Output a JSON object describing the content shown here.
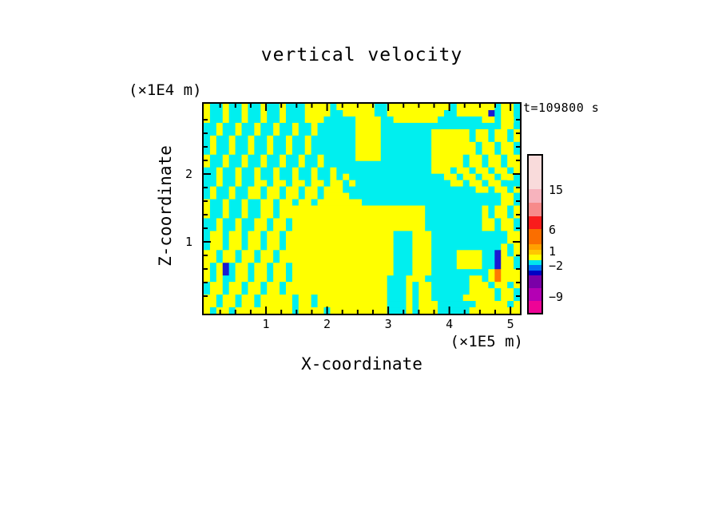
{
  "chart_data": {
    "type": "filled-contour",
    "title": "vertical velocity",
    "time_label": "t=109800 s",
    "x_axis": {
      "label": "X-coordinate",
      "unit": "(×1E5 m)",
      "range": [
        -0.02,
        5.155
      ],
      "major_ticks": [
        1,
        2,
        3,
        4,
        5
      ],
      "tick_labels": [
        "1",
        "2",
        "3",
        "4",
        "5"
      ],
      "minor_step": 0.25
    },
    "z_axis": {
      "label": "Z-coordinate",
      "unit": "(×1E4 m)",
      "range": [
        -0.059,
        3.035
      ],
      "major_ticks": [
        1,
        2
      ],
      "tick_labels": [
        "1",
        "2"
      ],
      "minor_step": 0.2
    },
    "colorbar": {
      "segments": [
        {
          "color": "#F9DBDB",
          "h": 42
        },
        {
          "color": "#F7B3BD",
          "h": 17
        },
        {
          "color": "#F78A8A",
          "h": 17
        },
        {
          "color": "#F91C1C",
          "h": 16
        },
        {
          "color": "#FA6E00",
          "h": 19
        },
        {
          "color": "#FFA000",
          "h": 6.5
        },
        {
          "color": "#FFC800",
          "h": 6.5
        },
        {
          "color": "#FFFF00",
          "h": 6.5
        },
        {
          "color": "#00E6EE",
          "h": 6.5
        },
        {
          "color": "#0072F5",
          "h": 6.5
        },
        {
          "color": "#0000C3",
          "h": 6.5
        },
        {
          "color": "#7A00A8",
          "h": 16
        },
        {
          "color": "#B400B4",
          "h": 16
        },
        {
          "color": "#EE0496",
          "h": 15
        }
      ],
      "labels": [
        {
          "text": "15",
          "offset": 43
        },
        {
          "text": "6",
          "offset": 93
        },
        {
          "text": "1",
          "offset": 120
        },
        {
          "text": "−2",
          "offset": 138
        },
        {
          "text": "−9",
          "offset": 177
        }
      ]
    },
    "field": {
      "cols": 50,
      "palette": {
        ".": {
          "color": "#00EFEF",
          "approx_value": "weak negative (−2 to 0)"
        },
        "Y": {
          "color": "#FFFF00",
          "approx_value": "weak positive (0 to 1)"
        },
        "B": {
          "color": "#1A1AD2",
          "approx_value": "strong negative (below −2)"
        },
        "O": {
          "color": "#FF7800",
          "approx_value": "strong positive (above +2)"
        }
      },
      "rows": [
        "Y..Y..Y..Y..Y...YYYY.YYYYYY..YYYYYYYYYY.YYYYYY.YY.",
        "Y..Y..Y..Y..Y...YYYY..YYYYY..YYYYYYYYY..YYYYYB.YY.",
        "Y..Y..Y..Y..Y...YYY.....YYYY..YYYYYYY.......YY.YY",
        "..Y..Y..Y..Y..Y..Y......YYYY...................YY.YY",
        "..Y..Y..Y..Y..Y..Y......YYYY........YYYYYY.YY.YY.Y",
        ".Y..Y..Y..Y..Y..Y.......YYYY........YYYYYY.YY.YY.Y",
        ".Y..Y..Y..Y..Y..Y.......YYYY........YYYYYYY.YY.YY.",
        ".Y..Y..Y..Y..Y..Y.......YYYY........YYYYYYY.YY.YY.",
        "Y..Y..Y..Y..Y..Y..Y.....YYYY........YYYYY.YY.YY.YY",
        "Y..Y..Y..Y..Y..Y..Y.................YYYYY.YY.YY.YY",
        "..Y..Y..Y..Y..Y..Y..Y...............YYY.YY.YY.YY.Y",
        "..Y..Y..Y..Y..Y..Y..Y.Y...............YY.YY.YY.YY.Y",
        "..Y..Y..YY.YY.YY.YY.YY.Y...............YY.YY.YY.",
        ".Y..Y..YY.YY.YY.YY.YYY.....................YY.YY.YY.",
        ".Y..Y..YY.YY.YY.YY.YYYY........................YY.YY",
        "Y..Y..Y..YY.YY.YY.YYYYYYY......................YY.YY",
        "Y..Y..Y..YY.YYYYYYYYYYYYYYYYYYYYYYY.........Y.YY.Y",
        "Y..Y..Y..YY.YYYYYYYYYYYYYYYYYYYYYYY.........Y.YY.Y",
        "..Y..Y..YY.YY.YYYYYYYYYYYYYYYYYYYYY.........YY.YY.",
        "..Y..Y..YY.YY.YYYYYYYYYYYYYYYYYYYYY.........YY.YY.",
        ".YY.YY.YY.YY.YYYYYYYYYYYYYYYYY...YYY............YY",
        ".YY.YY.YY.YY.YYYYYYYYYYYYYYYYY...YYY............YY",
        ".YY.YY.YY.YY.YYYYYYYYYYYYYYYYY...YYY...........Y.Y",
        "YY.YY.YY.YY.YYYYYYYYYYYYYYYYYY...YYY....YYYY..BY.Y",
        "YY.YY.YY.YY.YYYYYYYYYYYYYYYYYY...YYY....YYYY..BYY.",
        "Y.YB.YY.YY.YY.YYYYYYYYYYYYYYYY...YYY....YYYY..BYY.",
        "Y.YB.YY.YY.YY.YYYYYYYYYYYYYYYY...YYY.........YOYYY",
        "Y.Y..YY.YY.YY.YYYYYYYYYYYYYYY...YYY.......YY.YOYYY",
        ".YY.YY.YY.YY.YYYYYYYYYYYYYYYY...Y.YY......YYY.YY.Y",
        ".YY.YY.YY.YY.YYYYYYYYYYYYYYYY...Y.YY......YYYY.YY.",
        "YY.YY.YY.YYYYY.YY.YYYYYYYYYYY...Y.YY.....YYYYY.YY.",
        "YY.YY.YY.YYYYY.YY.YYYYYYYYYYY...Y.YYY......YYYYY.Y",
        "Y.YY.YYYYYYYYY.YYYY.YYYYYYYYY...Y.YYY.....YYYYYYYY"
      ]
    }
  }
}
